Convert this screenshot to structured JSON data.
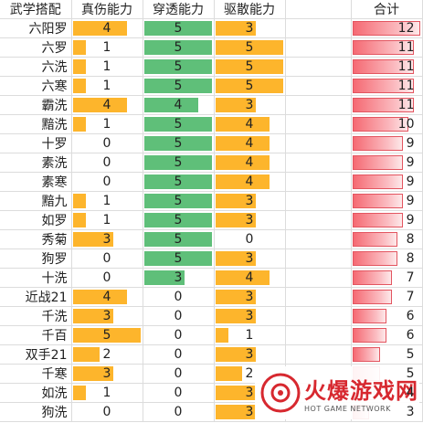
{
  "headers": [
    "武学搭配",
    "真伤能力",
    "穿透能力",
    "驱散能力",
    "",
    "合计"
  ],
  "scale": {
    "ability_max": 5,
    "total_max": 12
  },
  "colors": {
    "true_damage": "#fdb52c",
    "penetration": "#5fbf79",
    "dispel": "#fdb52c",
    "total": "#f56a73"
  },
  "rows": [
    {
      "name": "六阳罗",
      "true_damage": 4,
      "penetration": 5,
      "dispel": 3,
      "total": 12
    },
    {
      "name": "六罗",
      "true_damage": 1,
      "penetration": 5,
      "dispel": 5,
      "total": 11
    },
    {
      "name": "六洗",
      "true_damage": 1,
      "penetration": 5,
      "dispel": 5,
      "total": 11
    },
    {
      "name": "六寒",
      "true_damage": 1,
      "penetration": 5,
      "dispel": 5,
      "total": 11
    },
    {
      "name": "霸洗",
      "true_damage": 4,
      "penetration": 4,
      "dispel": 3,
      "total": 11
    },
    {
      "name": "黯洗",
      "true_damage": 1,
      "penetration": 5,
      "dispel": 4,
      "total": 10
    },
    {
      "name": "十罗",
      "true_damage": 0,
      "penetration": 5,
      "dispel": 4,
      "total": 9
    },
    {
      "name": "素洗",
      "true_damage": 0,
      "penetration": 5,
      "dispel": 4,
      "total": 9
    },
    {
      "name": "素寒",
      "true_damage": 0,
      "penetration": 5,
      "dispel": 4,
      "total": 9
    },
    {
      "name": "黯九",
      "true_damage": 1,
      "penetration": 5,
      "dispel": 3,
      "total": 9
    },
    {
      "name": "如罗",
      "true_damage": 1,
      "penetration": 5,
      "dispel": 3,
      "total": 9
    },
    {
      "name": "秀菊",
      "true_damage": 3,
      "penetration": 5,
      "dispel": 0,
      "total": 8
    },
    {
      "name": "狗罗",
      "true_damage": 0,
      "penetration": 5,
      "dispel": 3,
      "total": 8
    },
    {
      "name": "十洗",
      "true_damage": 0,
      "penetration": 3,
      "dispel": 4,
      "total": 7
    },
    {
      "name": "近战21",
      "true_damage": 4,
      "penetration": 0,
      "dispel": 3,
      "total": 7
    },
    {
      "name": "千洗",
      "true_damage": 3,
      "penetration": 0,
      "dispel": 3,
      "total": 6
    },
    {
      "name": "千百",
      "true_damage": 5,
      "penetration": 0,
      "dispel": 1,
      "total": 6
    },
    {
      "name": "双手21",
      "true_damage": 2,
      "penetration": 0,
      "dispel": 3,
      "total": 5
    },
    {
      "name": "千寒",
      "true_damage": 3,
      "penetration": 0,
      "dispel": 2,
      "total": 5
    },
    {
      "name": "如洗",
      "true_damage": 1,
      "penetration": 0,
      "dispel": 3,
      "total": 4
    },
    {
      "name": "狗洗",
      "true_damage": 0,
      "penetration": 0,
      "dispel": 3,
      "total": 3
    }
  ],
  "watermark": {
    "title": "火爆游戏网",
    "subtitle": "HOT GAME NETWORK"
  }
}
